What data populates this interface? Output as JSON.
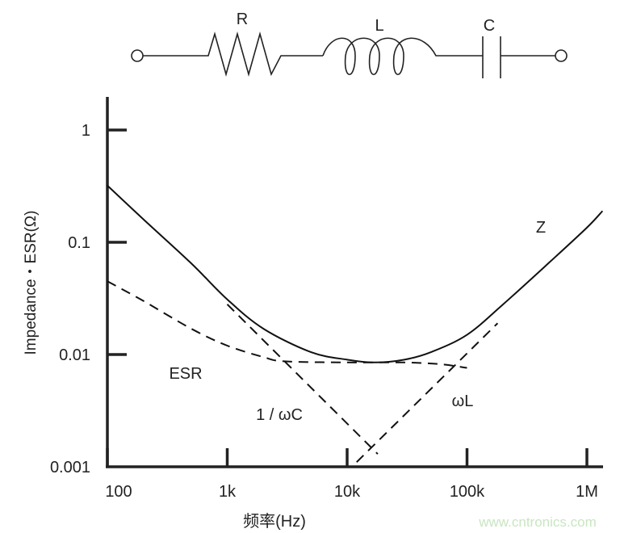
{
  "circuit": {
    "labels": {
      "r": "R",
      "l": "L",
      "c": "C"
    }
  },
  "chart_data": {
    "type": "line",
    "title": "",
    "xlabel": "频率(Hz)",
    "ylabel": "Impedance・ESR(Ω)",
    "xscale": "log",
    "yscale": "log",
    "xlim": [
      100,
      1350000
    ],
    "ylim": [
      0.001,
      2
    ],
    "x_ticks": [
      100,
      1000,
      10000,
      100000,
      1000000
    ],
    "x_tick_labels": [
      "100",
      "1k",
      "10k",
      "100k",
      "1M"
    ],
    "y_ticks": [
      1,
      0.1,
      0.01,
      0.001
    ],
    "y_tick_labels": [
      "1",
      "0.1",
      "0.01",
      "0.001"
    ],
    "grid": false,
    "series": [
      {
        "name": "Z",
        "style": "solid",
        "points": [
          [
            100,
            0.32
          ],
          [
            200,
            0.16
          ],
          [
            500,
            0.065
          ],
          [
            1000,
            0.031
          ],
          [
            2000,
            0.017
          ],
          [
            5000,
            0.0105
          ],
          [
            10000,
            0.009
          ],
          [
            17000,
            0.0085
          ],
          [
            30000,
            0.009
          ],
          [
            50000,
            0.0105
          ],
          [
            100000,
            0.015
          ],
          [
            200000,
            0.028
          ],
          [
            500000,
            0.068
          ],
          [
            1000000,
            0.135
          ],
          [
            1350000,
            0.19
          ]
        ]
      },
      {
        "name": "ESR",
        "style": "dashed",
        "points": [
          [
            100,
            0.045
          ],
          [
            200,
            0.03
          ],
          [
            500,
            0.017
          ],
          [
            1000,
            0.012
          ],
          [
            2000,
            0.0095
          ],
          [
            3000,
            0.0087
          ],
          [
            10000,
            0.0085
          ],
          [
            30000,
            0.0085
          ],
          [
            60000,
            0.0082
          ],
          [
            100000,
            0.0076
          ]
        ]
      },
      {
        "name": "1 / ωC",
        "style": "dashed",
        "points": [
          [
            1000,
            0.028
          ],
          [
            18000,
            0.0013
          ]
        ]
      },
      {
        "name": "ωL",
        "style": "dashed",
        "points": [
          [
            12000,
            0.0011
          ],
          [
            180000,
            0.019
          ]
        ]
      }
    ]
  },
  "watermark": "www.cntronics.com",
  "colors": {
    "line": "#111111",
    "watermark": "#c8e6c0"
  }
}
